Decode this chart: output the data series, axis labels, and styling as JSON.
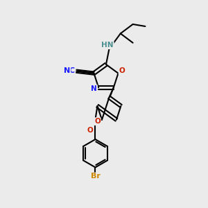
{
  "bg_color": "#ebebeb",
  "colors": {
    "bond": "#000000",
    "N": "#1a1aff",
    "O": "#cc2000",
    "Br": "#cc8800",
    "H_N": "#4a9090",
    "CN": "#1a1aff"
  },
  "figsize": [
    3.0,
    3.0
  ],
  "dpi": 100
}
